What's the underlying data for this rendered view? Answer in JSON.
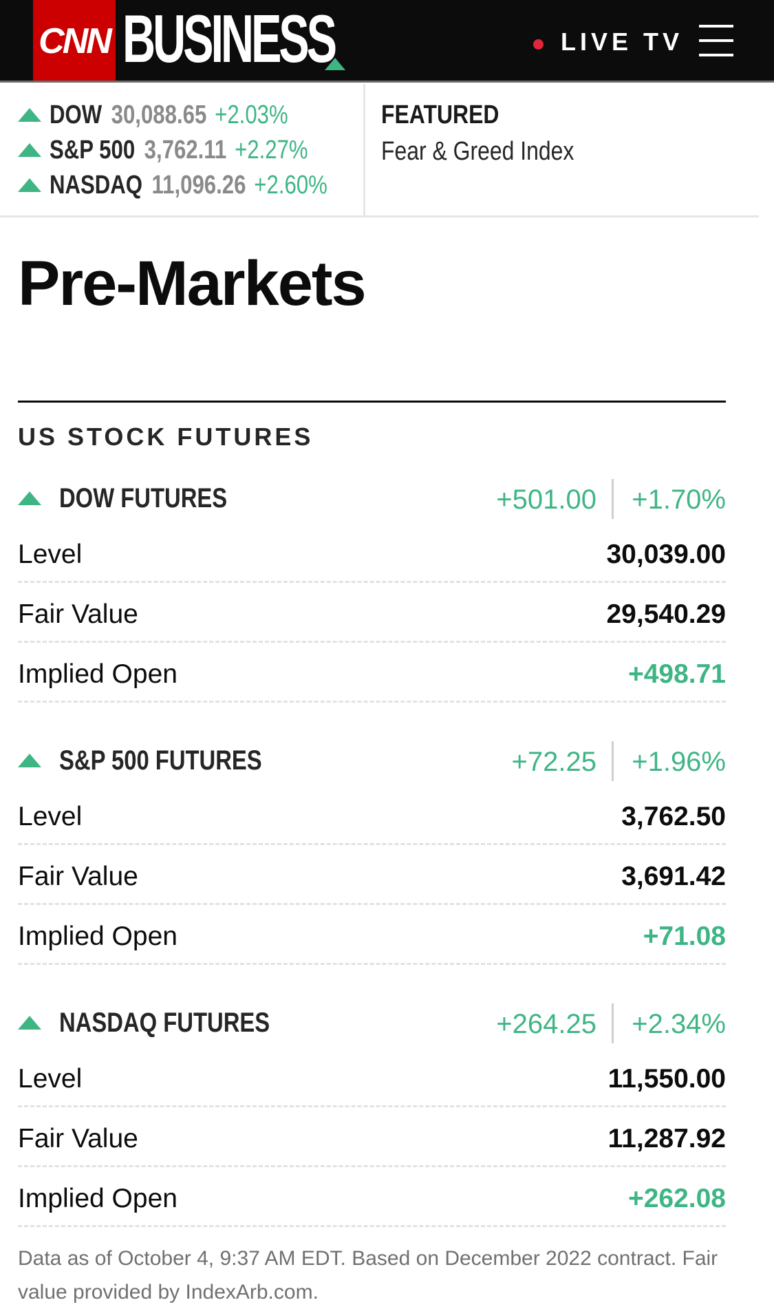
{
  "header": {
    "logo_text": "CNN",
    "brand_text": "BUSINESS",
    "live_label": "LIVE TV",
    "colors": {
      "bar": "#0c0c0c",
      "logo_red": "#cc0000",
      "accent_green": "#3fb585",
      "live_dot": "#e0263b"
    }
  },
  "ticker": [
    {
      "name": "DOW",
      "value": "30,088.65",
      "change": "+2.03%"
    },
    {
      "name": "S&P 500",
      "value": "3,762.11",
      "change": "+2.27%"
    },
    {
      "name": "NASDAQ",
      "value": "11,096.26",
      "change": "+2.60%"
    }
  ],
  "featured": {
    "label": "FEATURED",
    "link": "Fear & Greed Index"
  },
  "page_title": "Pre-Markets",
  "section_title": "US STOCK FUTURES",
  "futures": [
    {
      "name": "DOW FUTURES",
      "change": "+501.00",
      "change_pct": "+1.70%",
      "rows": [
        {
          "label": "Level",
          "value": "30,039.00"
        },
        {
          "label": "Fair Value",
          "value": "29,540.29"
        },
        {
          "label": "Implied Open",
          "value": "+498.71"
        }
      ]
    },
    {
      "name": "S&P 500 FUTURES",
      "change": "+72.25",
      "change_pct": "+1.96%",
      "rows": [
        {
          "label": "Level",
          "value": "3,762.50"
        },
        {
          "label": "Fair Value",
          "value": "3,691.42"
        },
        {
          "label": "Implied Open",
          "value": "+71.08"
        }
      ]
    },
    {
      "name": "NASDAQ FUTURES",
      "change": "+264.25",
      "change_pct": "+2.34%",
      "rows": [
        {
          "label": "Level",
          "value": "11,550.00"
        },
        {
          "label": "Fair Value",
          "value": "11,287.92"
        },
        {
          "label": "Implied Open",
          "value": "+262.08"
        }
      ]
    }
  ],
  "footer_note": "Data as of October 4, 9:37 AM EDT. Based on December 2022 contract. Fair value provided by IndexArb.com.",
  "icons": {
    "up": "up-triangle-icon",
    "menu": "hamburger-menu-icon",
    "live": "live-dot-icon"
  }
}
